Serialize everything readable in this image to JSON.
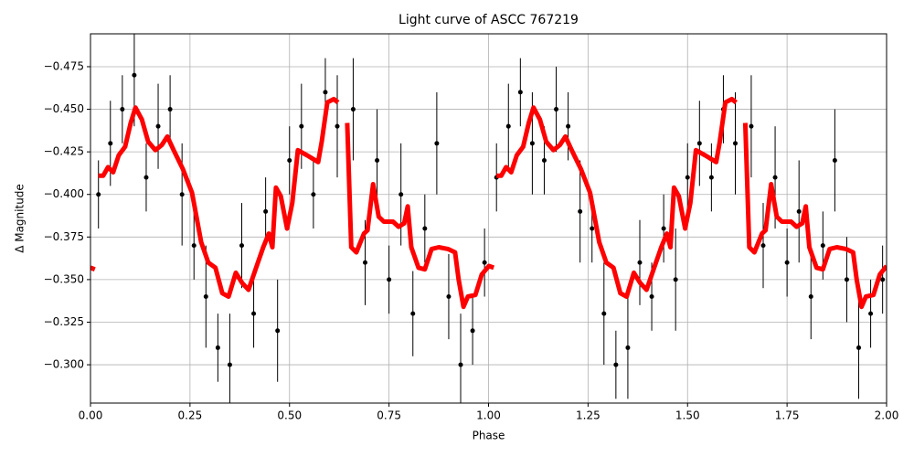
{
  "chart_data": {
    "type": "scatter",
    "title": "Light curve of ASCC 767219",
    "xlabel": "Phase",
    "ylabel": "Δ Magnitude",
    "xlim": [
      0,
      2
    ],
    "ylim": [
      -0.2775,
      -0.4943
    ],
    "xticks": [
      {
        "value": 0,
        "label": "0.00"
      },
      {
        "value": 0.25,
        "label": "0.25"
      },
      {
        "value": 0.5,
        "label": "0.50"
      },
      {
        "value": 0.75,
        "label": "0.75"
      },
      {
        "value": 1,
        "label": "1.00"
      },
      {
        "value": 1.25,
        "label": "1.25"
      },
      {
        "value": 1.5,
        "label": "1.50"
      },
      {
        "value": 1.75,
        "label": "1.75"
      },
      {
        "value": 2,
        "label": "2.00"
      }
    ],
    "yticks": [
      {
        "value": -0.475,
        "label": "−0.475"
      },
      {
        "value": -0.45,
        "label": "−0.450"
      },
      {
        "value": -0.425,
        "label": "−0.425"
      },
      {
        "value": -0.4,
        "label": "−0.400"
      },
      {
        "value": -0.375,
        "label": "−0.375"
      },
      {
        "value": -0.35,
        "label": "−0.350"
      },
      {
        "value": -0.325,
        "label": "−0.325"
      },
      {
        "value": -0.3,
        "label": "−0.300"
      }
    ],
    "grid": true,
    "points": {
      "color": "#000000",
      "x": [
        0.02,
        0.05,
        0.08,
        0.11,
        0.14,
        0.17,
        0.2,
        0.23,
        0.26,
        0.29,
        0.32,
        0.35,
        0.38,
        0.41,
        0.44,
        0.47,
        0.5,
        0.53,
        0.56,
        0.59,
        0.62,
        0.66,
        0.69,
        0.72,
        0.75,
        0.78,
        0.81,
        0.84,
        0.87,
        0.9,
        0.93,
        0.96,
        0.99,
        1.02,
        1.05,
        1.08,
        1.11,
        1.14,
        1.17,
        1.2,
        1.23,
        1.26,
        1.29,
        1.32,
        1.35,
        1.38,
        1.41,
        1.44,
        1.47,
        1.5,
        1.53,
        1.56,
        1.59,
        1.62,
        1.66,
        1.69,
        1.72,
        1.75,
        1.78,
        1.81,
        1.84,
        1.87,
        1.9,
        1.93,
        1.96,
        1.99
      ],
      "values": [
        -0.4,
        -0.43,
        -0.45,
        -0.47,
        -0.41,
        -0.44,
        -0.45,
        -0.4,
        -0.37,
        -0.34,
        -0.31,
        -0.3,
        -0.37,
        -0.33,
        -0.39,
        -0.32,
        -0.42,
        -0.44,
        -0.4,
        -0.46,
        -0.44,
        -0.45,
        -0.36,
        -0.42,
        -0.35,
        -0.4,
        -0.33,
        -0.38,
        -0.43,
        -0.34,
        -0.3,
        -0.32,
        -0.36,
        -0.41,
        -0.44,
        -0.46,
        -0.43,
        -0.42,
        -0.45,
        -0.44,
        -0.39,
        -0.38,
        -0.33,
        -0.3,
        -0.31,
        -0.36,
        -0.34,
        -0.38,
        -0.35,
        -0.41,
        -0.43,
        -0.41,
        -0.45,
        -0.43,
        -0.44,
        -0.37,
        -0.41,
        -0.36,
        -0.39,
        -0.34,
        -0.37,
        -0.42,
        -0.35,
        -0.31,
        -0.33,
        -0.35
      ],
      "errors": [
        0.02,
        0.025,
        0.02,
        0.03,
        0.02,
        0.025,
        0.02,
        0.03,
        0.02,
        0.03,
        0.02,
        0.03,
        0.025,
        0.02,
        0.02,
        0.03,
        0.02,
        0.025,
        0.02,
        0.02,
        0.03,
        0.03,
        0.025,
        0.03,
        0.02,
        0.03,
        0.025,
        0.02,
        0.03,
        0.025,
        0.03,
        0.02,
        0.02,
        0.02,
        0.025,
        0.02,
        0.03,
        0.02,
        0.025,
        0.02,
        0.03,
        0.02,
        0.03,
        0.02,
        0.03,
        0.025,
        0.02,
        0.02,
        0.03,
        0.02,
        0.025,
        0.02,
        0.02,
        0.03,
        0.03,
        0.025,
        0.03,
        0.02,
        0.03,
        0.025,
        0.02,
        0.03,
        0.025,
        0.03,
        0.02,
        0.02
      ]
    },
    "curve": {
      "color": "#ff0000",
      "x": [
        0.0,
        0.011,
        null,
        0.02,
        0.032,
        0.044,
        0.057,
        0.071,
        0.087,
        0.101,
        0.113,
        0.129,
        0.145,
        0.163,
        0.179,
        0.193,
        0.209,
        0.232,
        0.255,
        0.278,
        0.296,
        0.314,
        0.331,
        0.347,
        0.365,
        0.381,
        0.397,
        0.416,
        0.434,
        0.448,
        0.457,
        0.466,
        0.478,
        0.494,
        0.507,
        0.521,
        0.544,
        0.572,
        0.581,
        0.595,
        0.611,
        0.622,
        null,
        0.645,
        0.655,
        0.668,
        0.687,
        0.696,
        0.71,
        0.724,
        0.737,
        0.76,
        0.774,
        0.788,
        0.797,
        0.806,
        0.824,
        0.84,
        0.857,
        0.875,
        0.898,
        0.916,
        0.925,
        0.937,
        0.948,
        0.967,
        0.983,
        1.001,
        1.013,
        null,
        1.02,
        1.032,
        1.044,
        1.057,
        1.071,
        1.087,
        1.101,
        1.113,
        1.129,
        1.145,
        1.163,
        1.179,
        1.193,
        1.209,
        1.232,
        1.255,
        1.278,
        1.296,
        1.314,
        1.331,
        1.347,
        1.365,
        1.381,
        1.397,
        1.416,
        1.434,
        1.448,
        1.457,
        1.466,
        1.478,
        1.494,
        1.507,
        1.521,
        1.544,
        1.572,
        1.581,
        1.595,
        1.611,
        1.622,
        null,
        1.645,
        1.655,
        1.668,
        1.687,
        1.696,
        1.71,
        1.724,
        1.737,
        1.76,
        1.774,
        1.788,
        1.797,
        1.806,
        1.824,
        1.84,
        1.857,
        1.875,
        1.898,
        1.916,
        1.925,
        1.937,
        1.948,
        1.967,
        1.983,
        2.0
      ],
      "values": [
        -0.357,
        -0.356,
        null,
        -0.411,
        -0.411,
        -0.416,
        -0.413,
        -0.423,
        -0.428,
        -0.442,
        -0.451,
        -0.444,
        -0.431,
        -0.426,
        -0.429,
        -0.434,
        -0.426,
        -0.415,
        -0.401,
        -0.372,
        -0.36,
        -0.357,
        -0.342,
        -0.34,
        -0.354,
        -0.348,
        -0.344,
        -0.357,
        -0.369,
        -0.377,
        -0.369,
        -0.404,
        -0.399,
        -0.38,
        -0.395,
        -0.426,
        -0.423,
        -0.419,
        -0.431,
        -0.454,
        -0.456,
        -0.454,
        null,
        -0.442,
        -0.369,
        -0.366,
        -0.377,
        -0.379,
        -0.406,
        -0.387,
        -0.384,
        -0.384,
        -0.381,
        -0.383,
        -0.393,
        -0.369,
        -0.357,
        -0.356,
        -0.368,
        -0.369,
        -0.368,
        -0.366,
        -0.35,
        -0.334,
        -0.34,
        -0.341,
        -0.353,
        -0.358,
        -0.357,
        null,
        -0.411,
        -0.411,
        -0.416,
        -0.413,
        -0.423,
        -0.428,
        -0.442,
        -0.451,
        -0.444,
        -0.431,
        -0.426,
        -0.429,
        -0.434,
        -0.426,
        -0.415,
        -0.401,
        -0.372,
        -0.36,
        -0.357,
        -0.342,
        -0.34,
        -0.354,
        -0.348,
        -0.344,
        -0.357,
        -0.369,
        -0.377,
        -0.369,
        -0.404,
        -0.399,
        -0.38,
        -0.395,
        -0.426,
        -0.423,
        -0.419,
        -0.431,
        -0.454,
        -0.456,
        -0.454,
        null,
        -0.442,
        -0.369,
        -0.366,
        -0.377,
        -0.379,
        -0.406,
        -0.387,
        -0.384,
        -0.384,
        -0.381,
        -0.383,
        -0.393,
        -0.369,
        -0.357,
        -0.356,
        -0.368,
        -0.369,
        -0.368,
        -0.366,
        -0.35,
        -0.334,
        -0.34,
        -0.341,
        -0.353,
        -0.358
      ]
    }
  }
}
